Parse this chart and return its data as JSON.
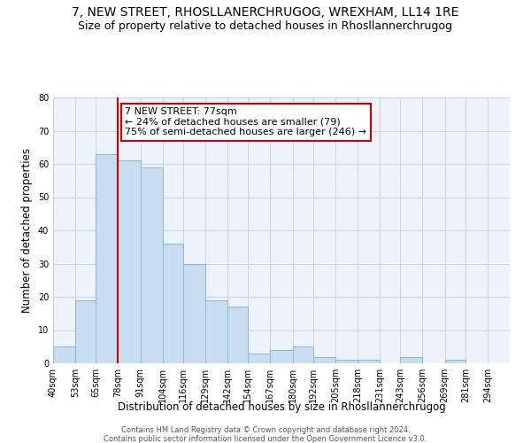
{
  "title": "7, NEW STREET, RHOSLLANERCHRUGOG, WREXHAM, LL14 1RE",
  "subtitle": "Size of property relative to detached houses in Rhosllannerchrugog",
  "xlabel": "Distribution of detached houses by size in Rhosllannerchrugog",
  "ylabel": "Number of detached properties",
  "bin_labels": [
    "40sqm",
    "53sqm",
    "65sqm",
    "78sqm",
    "91sqm",
    "104sqm",
    "116sqm",
    "129sqm",
    "142sqm",
    "154sqm",
    "167sqm",
    "180sqm",
    "192sqm",
    "205sqm",
    "218sqm",
    "231sqm",
    "243sqm",
    "256sqm",
    "269sqm",
    "281sqm",
    "294sqm"
  ],
  "bar_values": [
    5,
    19,
    63,
    61,
    59,
    36,
    30,
    19,
    17,
    3,
    4,
    5,
    2,
    1,
    1,
    0,
    2,
    0,
    1,
    0,
    0
  ],
  "bin_edges": [
    40,
    53,
    65,
    78,
    91,
    104,
    116,
    129,
    142,
    154,
    167,
    180,
    192,
    205,
    218,
    231,
    243,
    256,
    269,
    281,
    294,
    307
  ],
  "bar_color": "#c9ddf2",
  "bar_edge_color": "#8ab4d8",
  "vline_x": 78,
  "vline_color": "#cc0000",
  "annotation_text": "7 NEW STREET: 77sqm\n← 24% of detached houses are smaller (79)\n75% of semi-detached houses are larger (246) →",
  "annotation_box_edge_color": "#cc0000",
  "ylim": [
    0,
    80
  ],
  "yticks": [
    0,
    10,
    20,
    30,
    40,
    50,
    60,
    70,
    80
  ],
  "grid_color": "#c8d4e8",
  "bg_color": "#eef2fa",
  "footer_line1": "Contains HM Land Registry data © Crown copyright and database right 2024.",
  "footer_line2": "Contains public sector information licensed under the Open Government Licence v3.0.",
  "title_fontsize": 10,
  "subtitle_fontsize": 9,
  "axis_label_fontsize": 8.5,
  "tick_fontsize": 7,
  "annotation_fontsize": 8,
  "footer_fontsize": 6
}
